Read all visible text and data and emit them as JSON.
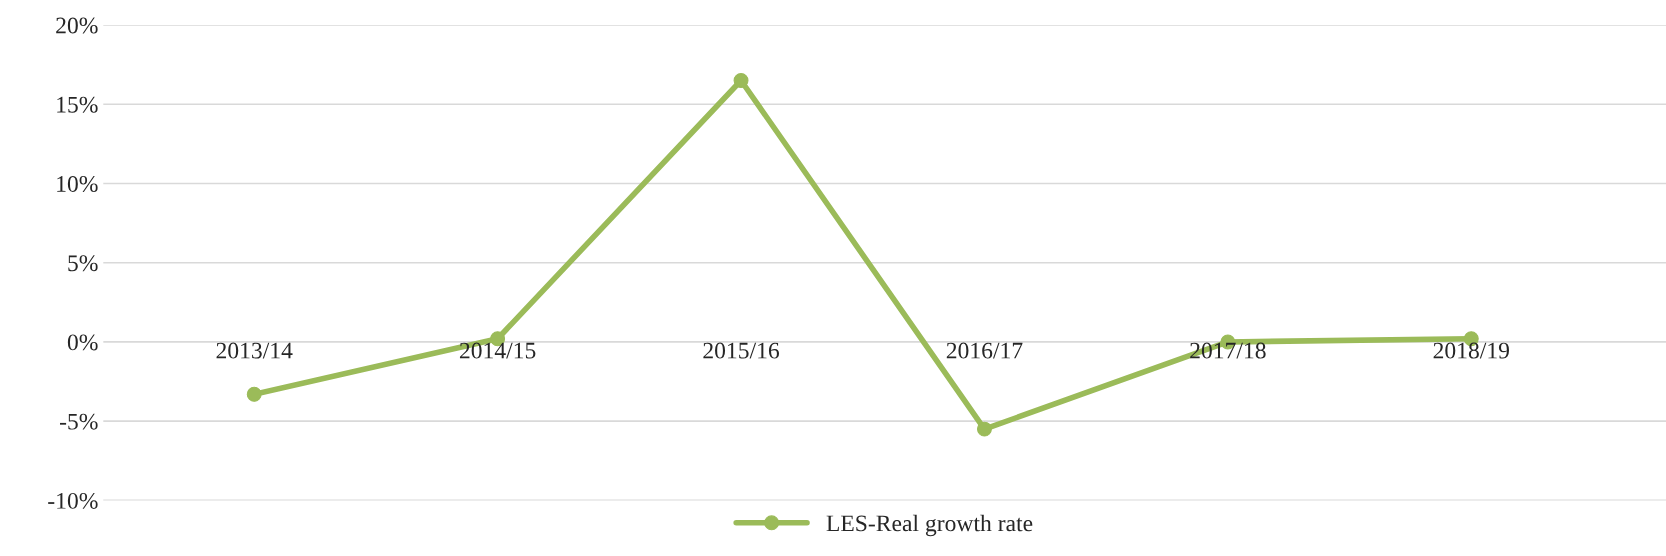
{
  "chart_data": {
    "type": "line",
    "categories": [
      "2013/14",
      "2014/15",
      "2015/16",
      "2016/17",
      "2017/18",
      "2018/19"
    ],
    "series": [
      {
        "name": "LES-Real growth rate",
        "color": "#9bbb59",
        "values": [
          -3.3,
          0.2,
          16.5,
          -5.5,
          0.0,
          0.2
        ]
      }
    ],
    "ylim": [
      -10,
      20
    ],
    "yticks": [
      {
        "value": -10,
        "label": "-10%"
      },
      {
        "value": -5,
        "label": "-5%"
      },
      {
        "value": 0,
        "label": "0%"
      },
      {
        "value": 5,
        "label": "5%"
      },
      {
        "value": 10,
        "label": "10%"
      },
      {
        "value": 15,
        "label": "15%"
      },
      {
        "value": 20,
        "label": "20%"
      }
    ],
    "grid": "y",
    "legend": "bottom",
    "marker": "circle",
    "line_style": "solid"
  }
}
